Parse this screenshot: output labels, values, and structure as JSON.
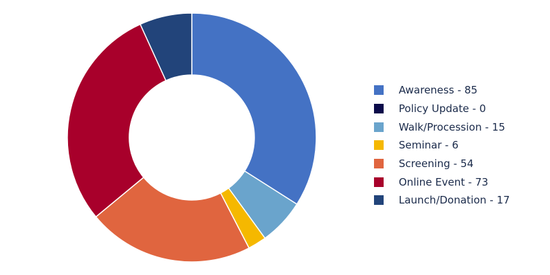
{
  "chart_data": {
    "type": "pie",
    "donut": true,
    "categories": [
      "Awareness",
      "Policy Update",
      "Walk/Procession",
      "Seminar",
      "Screening",
      "Online Event",
      "Launch/Donation"
    ],
    "values": [
      85,
      0,
      15,
      6,
      54,
      73,
      17
    ],
    "colors": [
      "#4472c4",
      "#0b0b4a",
      "#6aa4cc",
      "#f5b800",
      "#e0653f",
      "#a8002b",
      "#22447a"
    ],
    "legend_labels": [
      "Awareness - 85",
      "Policy Update - 0",
      "Walk/Procession - 15",
      "Seminar - 6",
      "Screening - 54",
      "Online Event - 73",
      "Launch/Donation - 17"
    ],
    "legend_position": "right",
    "title": ""
  }
}
